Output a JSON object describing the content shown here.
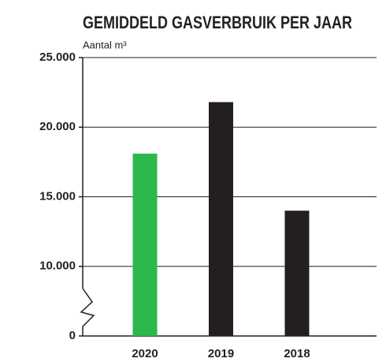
{
  "chart_data": {
    "type": "bar",
    "title": "GEMIDDELD GASVERBRUIK PER JAAR",
    "subtitle": "Aantal m³",
    "categories": [
      "2020",
      "2019",
      "2018"
    ],
    "values": [
      18100,
      21800,
      14000
    ],
    "colors": [
      "#2cb74a",
      "#231f20",
      "#231f20"
    ],
    "ylim": [
      0,
      25000
    ],
    "yticks": [
      0,
      {
        "value": 10000,
        "label": "10.000"
      },
      {
        "value": 15000,
        "label": "15.000"
      },
      {
        "value": 20000,
        "label": "20.000"
      },
      {
        "value": 25000,
        "label": "25.000"
      }
    ],
    "axis_break": true,
    "grid": true
  }
}
